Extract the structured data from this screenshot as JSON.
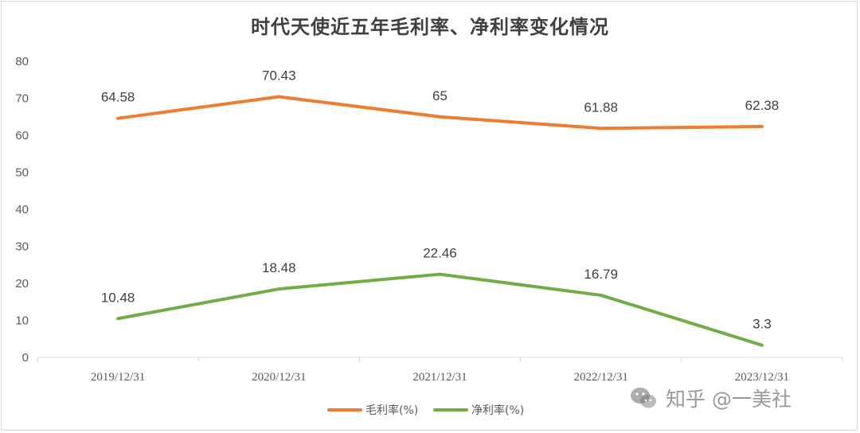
{
  "chart_data": {
    "type": "line",
    "title": "时代天使近五年毛利率、净利率变化情况",
    "categories": [
      "2019/12/31",
      "2020/12/31",
      "2021/12/31",
      "2022/12/31",
      "2023/12/31"
    ],
    "ylim": [
      0,
      80
    ],
    "yticks": [
      0,
      10,
      20,
      30,
      40,
      50,
      60,
      70,
      80
    ],
    "grid": false,
    "legend_position": "bottom",
    "series": [
      {
        "name": "毛利率(%)",
        "values": [
          64.58,
          70.43,
          65,
          61.88,
          62.38
        ],
        "labels": [
          "64.58",
          "70.43",
          "65",
          "61.88",
          "62.38"
        ],
        "color": "#ed7d31"
      },
      {
        "name": "净利率(%)",
        "values": [
          10.48,
          18.48,
          22.46,
          16.79,
          3.3
        ],
        "labels": [
          "10.48",
          "18.48",
          "22.46",
          "16.79",
          "3.3"
        ],
        "color": "#70ad47"
      }
    ]
  },
  "watermark": {
    "text": "知乎 @一美社",
    "icon": "wechat-icon"
  }
}
